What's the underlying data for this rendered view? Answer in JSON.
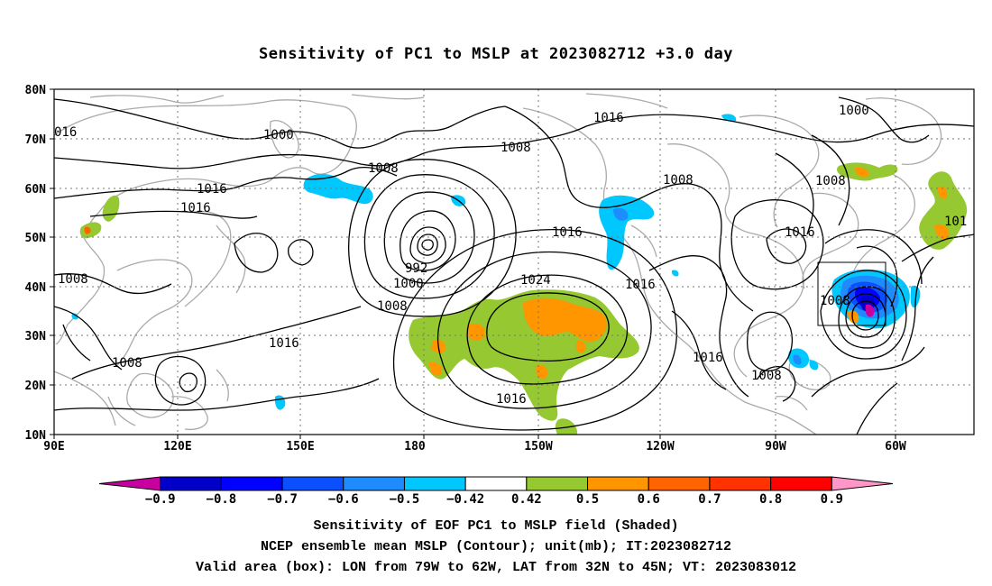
{
  "title": "Sensitivity of PC1 to MSLP at 2023082712 +3.0 day",
  "lat_labels": [
    "80N",
    "70N",
    "60N",
    "50N",
    "40N",
    "30N",
    "20N",
    "10N"
  ],
  "lon_labels": [
    "90E",
    "120E",
    "150E",
    "180",
    "150W",
    "120W",
    "90W",
    "60W"
  ],
  "contour_labels": [
    "016",
    "1000",
    "1016",
    "1000",
    "1008",
    "1008",
    "1008",
    "1016",
    "1016",
    "992",
    "1000",
    "1008",
    "1008",
    "1016",
    "1024",
    "1016",
    "1016",
    "1016",
    "1008",
    "1016",
    "1008",
    "1008",
    "1016",
    "101"
  ],
  "colorbar": {
    "colors": [
      "#c800a0",
      "#0000c8",
      "#0000ff",
      "#0a50ff",
      "#1e8cff",
      "#00c8ff",
      "#ffffff",
      "#96c832",
      "#ff9600",
      "#ff6400",
      "#ff3200",
      "#ff0000",
      "#ff96c8"
    ],
    "labels": [
      "−0.9",
      "−0.8",
      "−0.7",
      "−0.6",
      "−0.5",
      "−0.42",
      "0.42",
      "0.5",
      "0.6",
      "0.7",
      "0.8",
      "0.9"
    ]
  },
  "captions": [
    "Sensitivity of EOF PC1 to MSLP field (Shaded)",
    "NCEP ensemble mean MSLP (Contour); unit(mb); IT:2023082712",
    "Valid area (box): LON from 79W to 62W, LAT from 32N to 45N; VT: 2023083012"
  ],
  "colors": {
    "coast": "#aaaaaa",
    "contour": "#000000",
    "green": "#96c832",
    "orange": "#ff9600",
    "cyan": "#00c8ff"
  }
}
